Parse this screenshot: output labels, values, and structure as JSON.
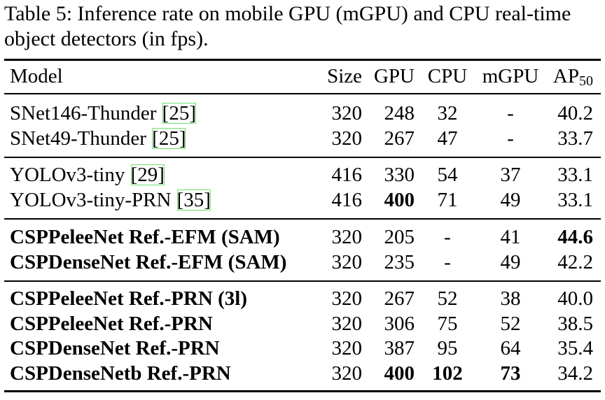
{
  "caption": "Table 5: Inference rate on mobile GPU (mGPU) and CPU real-time object detectors (in fps).",
  "columns": {
    "model": "Model",
    "size": "Size",
    "gpu": "GPU",
    "cpu": "CPU",
    "mgpu": "mGPU",
    "ap": "AP",
    "ap_sub": "50"
  },
  "rows": [
    {
      "model": "SNet146-Thunder ",
      "ref": "[25]",
      "size": "320",
      "gpu": "248",
      "cpu": "32",
      "mgpu": "-",
      "ap": "40.2"
    },
    {
      "model": "SNet49-Thunder ",
      "ref": "[25]",
      "size": "320",
      "gpu": "267",
      "cpu": "47",
      "mgpu": "-",
      "ap": "33.7"
    },
    {
      "model": "YOLOv3-tiny ",
      "ref": "[29]",
      "size": "416",
      "gpu": "330",
      "cpu": "54",
      "mgpu": "37",
      "ap": "33.1"
    },
    {
      "model": "YOLOv3-tiny-PRN ",
      "ref": "[35]",
      "size": "416",
      "gpu": "400",
      "cpu": "71",
      "mgpu": "49",
      "ap": "33.1"
    },
    {
      "model": "CSPPeleeNet Ref.-EFM (SAM)",
      "ref": "",
      "size": "320",
      "gpu": "205",
      "cpu": "-",
      "mgpu": "41",
      "ap": "44.6"
    },
    {
      "model": "CSPDenseNet Ref.-EFM (SAM)",
      "ref": "",
      "size": "320",
      "gpu": "235",
      "cpu": "-",
      "mgpu": "49",
      "ap": "42.2"
    },
    {
      "model": "CSPPeleeNet Ref.-PRN (3l)",
      "ref": "",
      "size": "320",
      "gpu": "267",
      "cpu": "52",
      "mgpu": "38",
      "ap": "40.0"
    },
    {
      "model": "CSPPeleeNet Ref.-PRN",
      "ref": "",
      "size": "320",
      "gpu": "306",
      "cpu": "75",
      "mgpu": "52",
      "ap": "38.5"
    },
    {
      "model": "CSPDenseNet Ref.-PRN",
      "ref": "",
      "size": "320",
      "gpu": "387",
      "cpu": "95",
      "mgpu": "64",
      "ap": "35.4"
    },
    {
      "model": "CSPDenseNetb Ref.-PRN",
      "ref": "",
      "size": "320",
      "gpu": "400",
      "cpu": "102",
      "mgpu": "73",
      "ap": "34.2"
    }
  ]
}
